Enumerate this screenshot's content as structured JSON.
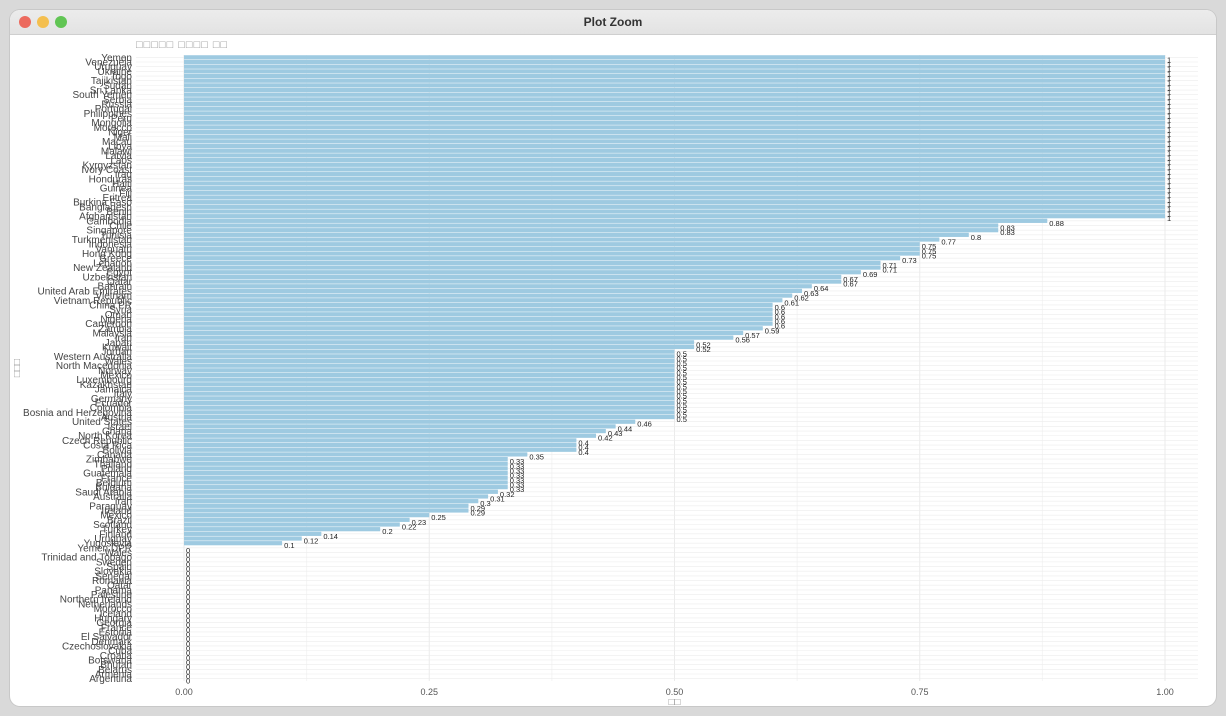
{
  "window": {
    "title": "Plot Zoom"
  },
  "chart_data": {
    "type": "bar",
    "orientation": "horizontal",
    "title": "□□□□□ □□□□ □□",
    "xlabel": "□□",
    "ylabel": "□□□",
    "xlim": [
      0,
      1
    ],
    "x_ticks": [
      "0.00",
      "0.25",
      "0.50",
      "0.75",
      "1.00"
    ],
    "grid": true,
    "bar_color": "#9ecae1",
    "bars": [
      {
        "category": "Yemen",
        "value": 1
      },
      {
        "category": "Venezuela",
        "value": 1
      },
      {
        "category": "Uruguay",
        "value": 1
      },
      {
        "category": "Ukraine",
        "value": 1
      },
      {
        "category": "Togo",
        "value": 1
      },
      {
        "category": "Tajikistan",
        "value": 1
      },
      {
        "category": "Sudan",
        "value": 1
      },
      {
        "category": "Sri Lanka",
        "value": 1
      },
      {
        "category": "South Yemen",
        "value": 1
      },
      {
        "category": "Serbia",
        "value": 1
      },
      {
        "category": "Russia",
        "value": 1
      },
      {
        "category": "Portugal",
        "value": 1
      },
      {
        "category": "Philippines",
        "value": 1
      },
      {
        "category": "Peru",
        "value": 1
      },
      {
        "category": "Mongolia",
        "value": 1
      },
      {
        "category": "Morocco",
        "value": 1
      },
      {
        "category": "Niger",
        "value": 1
      },
      {
        "category": "Mali",
        "value": 1
      },
      {
        "category": "Macau",
        "value": 1
      },
      {
        "category": "Libya",
        "value": 1
      },
      {
        "category": "Malawi",
        "value": 1
      },
      {
        "category": "Latvia",
        "value": 1
      },
      {
        "category": "Laos",
        "value": 1
      },
      {
        "category": "Kyrgyzstan",
        "value": 1
      },
      {
        "category": "Ivory Coast",
        "value": 1
      },
      {
        "category": "Iraq",
        "value": 1
      },
      {
        "category": "Honduras",
        "value": 1
      },
      {
        "category": "Haiti",
        "value": 1
      },
      {
        "category": "Guinea",
        "value": 1
      },
      {
        "category": "Fiji",
        "value": 1
      },
      {
        "category": "Eritrea",
        "value": 1
      },
      {
        "category": "Burkina Faso",
        "value": 1
      },
      {
        "category": "Bangladesh",
        "value": 1
      },
      {
        "category": "Benin",
        "value": 1
      },
      {
        "category": "Afghanistan",
        "value": 1
      },
      {
        "category": "Cambodia",
        "value": 0.88
      },
      {
        "category": "Chile",
        "value": 0.83
      },
      {
        "category": "Singapore",
        "value": 0.83
      },
      {
        "category": "Tunisia",
        "value": 0.8
      },
      {
        "category": "Turkmenistan",
        "value": 0.77
      },
      {
        "category": "Indonesia",
        "value": 0.75
      },
      {
        "category": "Vanuatu",
        "value": 0.75
      },
      {
        "category": "Hong Kong",
        "value": 0.75
      },
      {
        "category": "Greece",
        "value": 0.73
      },
      {
        "category": "Lebanon",
        "value": 0.71
      },
      {
        "category": "New Zealand",
        "value": 0.71
      },
      {
        "category": "Egypt",
        "value": 0.69
      },
      {
        "category": "Uzbekistan",
        "value": 0.67
      },
      {
        "category": "Qatar",
        "value": 0.67
      },
      {
        "category": "Bahrain",
        "value": 0.64
      },
      {
        "category": "United Arab Emirates",
        "value": 0.63
      },
      {
        "category": "Vietnam",
        "value": 0.62
      },
      {
        "category": "Vietnam Republic",
        "value": 0.61
      },
      {
        "category": "China PR",
        "value": 0.6
      },
      {
        "category": "Syria",
        "value": 0.6
      },
      {
        "category": "Oman",
        "value": 0.6
      },
      {
        "category": "Nigeria",
        "value": 0.6
      },
      {
        "category": "Cameroon",
        "value": 0.6
      },
      {
        "category": "Zambia",
        "value": 0.59
      },
      {
        "category": "Malaysia",
        "value": 0.57
      },
      {
        "category": "Iran",
        "value": 0.56
      },
      {
        "category": "Japan",
        "value": 0.52
      },
      {
        "category": "Kuwait",
        "value": 0.52
      },
      {
        "category": "Jordan",
        "value": 0.5
      },
      {
        "category": "Western Australia",
        "value": 0.5
      },
      {
        "category": "Wales",
        "value": 0.5
      },
      {
        "category": "North Macedonia",
        "value": 0.5
      },
      {
        "category": "Norway",
        "value": 0.5
      },
      {
        "category": "Mexico",
        "value": 0.5
      },
      {
        "category": "Luxembourg",
        "value": 0.5
      },
      {
        "category": "Kazakhstan",
        "value": 0.5
      },
      {
        "category": "Jamaica",
        "value": 0.5
      },
      {
        "category": "Italy",
        "value": 0.5
      },
      {
        "category": "Germany",
        "value": 0.5
      },
      {
        "category": "Ecuador",
        "value": 0.5
      },
      {
        "category": "Colombia",
        "value": 0.5
      },
      {
        "category": "Bosnia and Herzegovina",
        "value": 0.5
      },
      {
        "category": "Austria",
        "value": 0.5
      },
      {
        "category": "United States",
        "value": 0.46
      },
      {
        "category": "Israel",
        "value": 0.44
      },
      {
        "category": "Ghana",
        "value": 0.43
      },
      {
        "category": "North Korea",
        "value": 0.42
      },
      {
        "category": "Czech Republic",
        "value": 0.4
      },
      {
        "category": "Costa Rica",
        "value": 0.4
      },
      {
        "category": "Bolivia",
        "value": 0.4
      },
      {
        "category": "Canada",
        "value": 0.35
      },
      {
        "category": "Zimbabwe",
        "value": 0.33
      },
      {
        "category": "Thailand",
        "value": 0.33
      },
      {
        "category": "Poland",
        "value": 0.33
      },
      {
        "category": "Guatemala",
        "value": 0.33
      },
      {
        "category": "France",
        "value": 0.33
      },
      {
        "category": "Belgium",
        "value": 0.33
      },
      {
        "category": "Bulgaria",
        "value": 0.33
      },
      {
        "category": "Saudi Arabia",
        "value": 0.32
      },
      {
        "category": "Australia",
        "value": 0.31
      },
      {
        "category": "Iran",
        "value": 0.3
      },
      {
        "category": "Paraguay",
        "value": 0.29
      },
      {
        "category": "Ireland",
        "value": 0.29
      },
      {
        "category": "Mexico",
        "value": 0.25
      },
      {
        "category": "Brazil",
        "value": 0.23
      },
      {
        "category": "Scotland",
        "value": 0.22
      },
      {
        "category": "Turkey",
        "value": 0.2
      },
      {
        "category": "Finland",
        "value": 0.14
      },
      {
        "category": "Uruguay",
        "value": 0.12
      },
      {
        "category": "Yugoslavia",
        "value": 0.1
      },
      {
        "category": "Yemen DPR",
        "value": 0
      },
      {
        "category": "Wales",
        "value": 0
      },
      {
        "category": "Trinidad and Tobago",
        "value": 0
      },
      {
        "category": "Sweden",
        "value": 0
      },
      {
        "category": "Spain",
        "value": 0
      },
      {
        "category": "Slovakia",
        "value": 0
      },
      {
        "category": "Senegal",
        "value": 0
      },
      {
        "category": "Romania",
        "value": 0
      },
      {
        "category": "Qatar",
        "value": 0
      },
      {
        "category": "Panama",
        "value": 0
      },
      {
        "category": "Palestine",
        "value": 0
      },
      {
        "category": "Northern Ireland",
        "value": 0
      },
      {
        "category": "Netherlands",
        "value": 0
      },
      {
        "category": "Morocco",
        "value": 0
      },
      {
        "category": "Iceland",
        "value": 0
      },
      {
        "category": "Hungary",
        "value": 0
      },
      {
        "category": "Georgia",
        "value": 0
      },
      {
        "category": "France",
        "value": 0
      },
      {
        "category": "Estonia",
        "value": 0
      },
      {
        "category": "El Salvador",
        "value": 0
      },
      {
        "category": "Denmark",
        "value": 0
      },
      {
        "category": "Czechoslovakia",
        "value": 0
      },
      {
        "category": "Cuba",
        "value": 0
      },
      {
        "category": "Croatia",
        "value": 0
      },
      {
        "category": "Botswana",
        "value": 0
      },
      {
        "category": "Bhutan",
        "value": 0
      },
      {
        "category": "Belarus",
        "value": 0
      },
      {
        "category": "Armenia",
        "value": 0
      },
      {
        "category": "Argentina",
        "value": 0
      }
    ]
  }
}
